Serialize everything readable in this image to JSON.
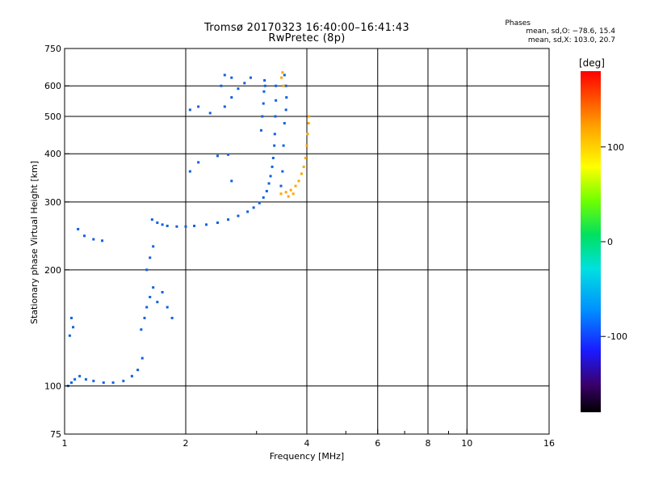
{
  "header": {
    "title_line1": "Tromsø 20170323 16:40:00–16:41:43",
    "title_line2": "RwPretec (8p)",
    "stats_title": "Phases",
    "stats_line1": "mean, sd,O: −78.6, 15.4",
    "stats_line2": "mean, sd,X: 103.0, 20.7"
  },
  "colors": {
    "background": "#ffffff",
    "grid": "#000000",
    "o_trace": "#1060e0",
    "x_trace": "#ffa500",
    "light_trace": "#20a0ff"
  },
  "chart_data": {
    "type": "scatter",
    "title": "Tromsø 20170323 16:40:00–16:41:43",
    "subtitle": "RwPretec (8p)",
    "xlabel": "Frequency [MHz]",
    "ylabel": "Stationary phase Virtual Height [km]",
    "x_scale": "log",
    "y_scale": "log",
    "xlim": [
      1,
      16
    ],
    "ylim": [
      75,
      750
    ],
    "x_ticks": [
      1,
      2,
      4,
      6,
      8,
      10,
      16
    ],
    "y_ticks": [
      75,
      100,
      200,
      300,
      400,
      500,
      600,
      750
    ],
    "x_grid": [
      2,
      4,
      6,
      8,
      10
    ],
    "y_grid": [
      100,
      200,
      300,
      400,
      500,
      600
    ],
    "x_minor_ticks": [
      3,
      5,
      7,
      9
    ],
    "colorbar": {
      "label": "[deg]",
      "ticks": [
        100,
        0,
        -100
      ],
      "range": [
        -180,
        180
      ]
    },
    "series": [
      {
        "mode": "O",
        "phase_mean": -78.6,
        "phase_sd": 15.4,
        "points": [
          [
            1.02,
            100
          ],
          [
            1.04,
            102
          ],
          [
            1.06,
            104
          ],
          [
            1.09,
            106
          ],
          [
            1.13,
            104
          ],
          [
            1.18,
            103
          ],
          [
            1.25,
            102
          ],
          [
            1.32,
            102
          ],
          [
            1.4,
            103
          ],
          [
            1.47,
            106
          ],
          [
            1.52,
            110
          ],
          [
            1.56,
            118
          ],
          [
            1.03,
            135
          ],
          [
            1.05,
            142
          ],
          [
            1.04,
            150
          ],
          [
            1.08,
            255
          ],
          [
            1.12,
            245
          ],
          [
            1.18,
            240
          ],
          [
            1.24,
            238
          ],
          [
            1.55,
            140
          ],
          [
            1.58,
            150
          ],
          [
            1.6,
            160
          ],
          [
            1.63,
            170
          ],
          [
            1.66,
            180
          ],
          [
            1.7,
            165
          ],
          [
            1.75,
            175
          ],
          [
            1.8,
            160
          ],
          [
            1.85,
            150
          ],
          [
            1.6,
            200
          ],
          [
            1.63,
            215
          ],
          [
            1.66,
            230
          ],
          [
            1.65,
            270
          ],
          [
            1.7,
            265
          ],
          [
            1.75,
            262
          ],
          [
            1.8,
            260
          ],
          [
            1.9,
            259
          ],
          [
            2.0,
            259
          ],
          [
            2.1,
            260
          ],
          [
            2.25,
            262
          ],
          [
            2.4,
            265
          ],
          [
            2.55,
            270
          ],
          [
            2.7,
            276
          ],
          [
            2.85,
            283
          ],
          [
            2.95,
            290
          ],
          [
            3.05,
            298
          ],
          [
            3.12,
            308
          ],
          [
            3.18,
            320
          ],
          [
            3.22,
            335
          ],
          [
            3.25,
            350
          ],
          [
            3.28,
            370
          ],
          [
            3.3,
            390
          ],
          [
            3.32,
            420
          ],
          [
            3.33,
            450
          ],
          [
            3.34,
            500
          ],
          [
            3.35,
            550
          ],
          [
            3.35,
            600
          ],
          [
            3.08,
            460
          ],
          [
            3.1,
            500
          ],
          [
            3.12,
            540
          ],
          [
            3.13,
            580
          ],
          [
            3.14,
            620
          ],
          [
            3.15,
            600
          ],
          [
            2.05,
            520
          ],
          [
            2.15,
            530
          ],
          [
            2.3,
            510
          ],
          [
            2.5,
            530
          ],
          [
            2.6,
            560
          ],
          [
            2.7,
            590
          ],
          [
            2.8,
            610
          ],
          [
            2.9,
            630
          ],
          [
            2.5,
            640
          ],
          [
            2.6,
            630
          ],
          [
            2.45,
            600
          ],
          [
            2.05,
            360
          ],
          [
            2.15,
            380
          ],
          [
            2.4,
            395
          ],
          [
            2.55,
            398
          ],
          [
            2.6,
            340
          ],
          [
            3.45,
            330
          ],
          [
            3.48,
            360
          ],
          [
            3.5,
            420
          ],
          [
            3.52,
            480
          ],
          [
            3.55,
            520
          ],
          [
            3.56,
            560
          ],
          [
            3.55,
            600
          ],
          [
            3.52,
            640
          ]
        ]
      },
      {
        "mode": "X",
        "phase_mean": 103.0,
        "phase_sd": 20.7,
        "points": [
          [
            3.45,
            315
          ],
          [
            3.55,
            318
          ],
          [
            3.65,
            322
          ],
          [
            3.75,
            330
          ],
          [
            3.82,
            340
          ],
          [
            3.88,
            355
          ],
          [
            3.93,
            370
          ],
          [
            3.97,
            390
          ],
          [
            4.0,
            420
          ],
          [
            4.02,
            450
          ],
          [
            4.04,
            480
          ],
          [
            4.05,
            500
          ],
          [
            3.6,
            310
          ],
          [
            3.7,
            315
          ],
          [
            3.48,
            650
          ],
          [
            3.46,
            630
          ],
          [
            3.5,
            600
          ]
        ]
      }
    ]
  }
}
